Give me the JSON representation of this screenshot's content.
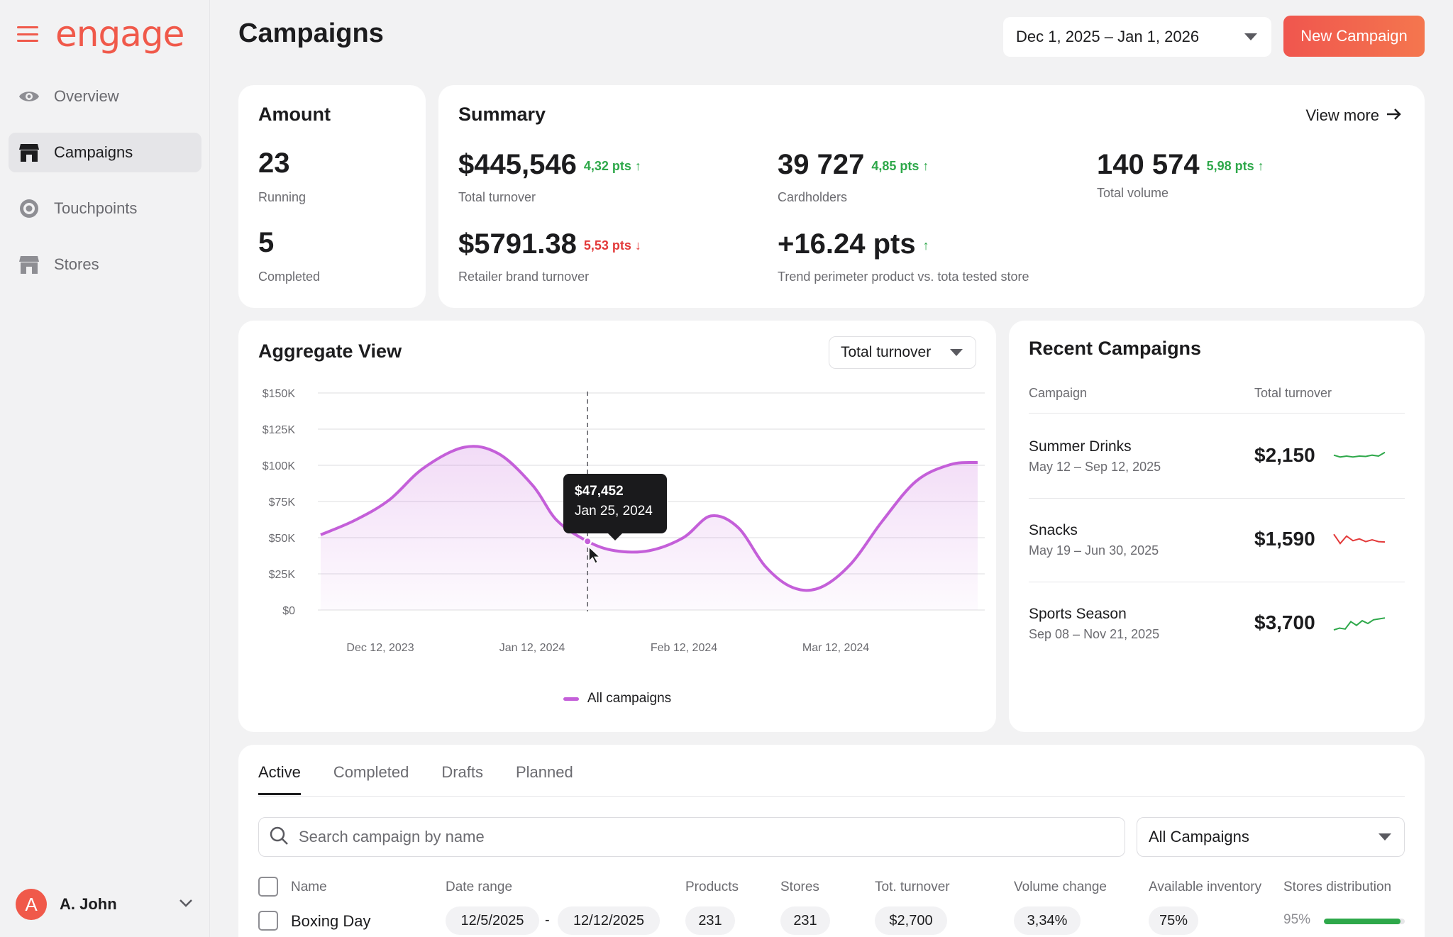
{
  "app": {
    "logo": "engage"
  },
  "nav": [
    {
      "label": "Overview",
      "icon": "eye-icon"
    },
    {
      "label": "Campaigns",
      "icon": "store-icon",
      "active": true
    },
    {
      "label": "Touchpoints",
      "icon": "target-icon"
    },
    {
      "label": "Stores",
      "icon": "shop-icon"
    }
  ],
  "user": {
    "initial": "A",
    "name": "A. John"
  },
  "header": {
    "title": "Campaigns",
    "date_range": "Dec 1, 2025 – Jan 1, 2026",
    "new_campaign": "New Campaign"
  },
  "amount": {
    "title": "Amount",
    "running_value": "23",
    "running_label": "Running",
    "completed_value": "5",
    "completed_label": "Completed"
  },
  "summary": {
    "title": "Summary",
    "view_more": "View more",
    "metrics": [
      {
        "value": "$445,546",
        "delta": "4,32 pts",
        "direction": "up",
        "label": "Total turnover"
      },
      {
        "value": "39 727",
        "delta": "4,85 pts",
        "direction": "up",
        "label": "Cardholders"
      },
      {
        "value": "140 574",
        "delta": "5,98 pts",
        "direction": "up",
        "label": "Total volume"
      },
      {
        "value": "$5791.38",
        "delta": "5,53 pts",
        "direction": "down",
        "label": "Retailer brand turnover"
      },
      {
        "value": "+16.24 pts",
        "delta": "",
        "direction": "up",
        "label": "Trend perimeter product vs. tota tested store"
      }
    ]
  },
  "aggregate": {
    "title": "Aggregate View",
    "metric_select": "Total turnover",
    "legend": "All campaigns",
    "tooltip": {
      "value": "$47,452",
      "date": "Jan 25, 2024"
    }
  },
  "chart_data": {
    "type": "area",
    "title": "Aggregate View",
    "series": [
      {
        "name": "All campaigns",
        "color": "#c45fd9",
        "points": [
          [
            0,
            52000
          ],
          [
            0.5,
            62000
          ],
          [
            1,
            76000
          ],
          [
            1.5,
            98000
          ],
          [
            2.1,
            112500
          ],
          [
            2.6,
            108000
          ],
          [
            3.1,
            86000
          ],
          [
            3.45,
            62000
          ],
          [
            3.9,
            47452
          ],
          [
            4.3,
            41000
          ],
          [
            4.8,
            41000
          ],
          [
            5.3,
            50000
          ],
          [
            5.7,
            65000
          ],
          [
            6.1,
            57000
          ],
          [
            6.5,
            30000
          ],
          [
            6.9,
            15500
          ],
          [
            7.3,
            15500
          ],
          [
            7.75,
            32000
          ],
          [
            8.2,
            61000
          ],
          [
            8.7,
            89000
          ],
          [
            9.2,
            100500
          ],
          [
            9.6,
            102000
          ]
        ]
      }
    ],
    "x_ticks": [
      "Dec 12, 2023",
      "Jan 12, 2024",
      "Feb 12, 2024",
      "Mar 12, 2024"
    ],
    "y_ticks": [
      "$0",
      "$25K",
      "$50K",
      "$75K",
      "$100K",
      "$125K",
      "$150K"
    ],
    "ylim": [
      0,
      150000
    ],
    "grid": true,
    "legend_position": "bottom-center"
  },
  "recent": {
    "title": "Recent Campaigns",
    "col_campaign": "Campaign",
    "col_turnover": "Total turnover",
    "rows": [
      {
        "name": "Summer Drinks",
        "dates": "May 12 – Sep 12, 2025",
        "value": "$2,150",
        "trend": "up",
        "spark": [
          0.45,
          0.55,
          0.5,
          0.55,
          0.5,
          0.52,
          0.45,
          0.5,
          0.3
        ]
      },
      {
        "name": "Snacks",
        "dates": "May 19 – Jun 30, 2025",
        "value": "$1,590",
        "trend": "down",
        "spark": [
          0.2,
          0.7,
          0.3,
          0.55,
          0.45,
          0.6,
          0.5,
          0.6,
          0.62
        ]
      },
      {
        "name": "Sports Season",
        "dates": "Sep 08 – Nov 21, 2025",
        "value": "$3,700",
        "trend": "up",
        "spark": [
          0.85,
          0.75,
          0.8,
          0.4,
          0.6,
          0.35,
          0.5,
          0.3,
          0.25,
          0.2
        ]
      }
    ]
  },
  "table": {
    "tabs": [
      "Active",
      "Completed",
      "Drafts",
      "Planned"
    ],
    "search_placeholder": "Search campaign by name",
    "filter": "All Campaigns",
    "columns": {
      "name": "Name",
      "date_range": "Date range",
      "products": "Products",
      "stores": "Stores",
      "turnover": "Tot. turnover",
      "volume": "Volume change",
      "inventory": "Available inventory",
      "distribution": "Stores distribution"
    },
    "rows": [
      {
        "name": "Boxing Day",
        "start": "12/5/2025",
        "end": "12/12/2025",
        "products": "231",
        "stores": "231",
        "turnover": "$2,700",
        "volume": "3,34%",
        "inventory": "75%",
        "distribution_label": "95%",
        "distribution": 0.95
      }
    ]
  }
}
